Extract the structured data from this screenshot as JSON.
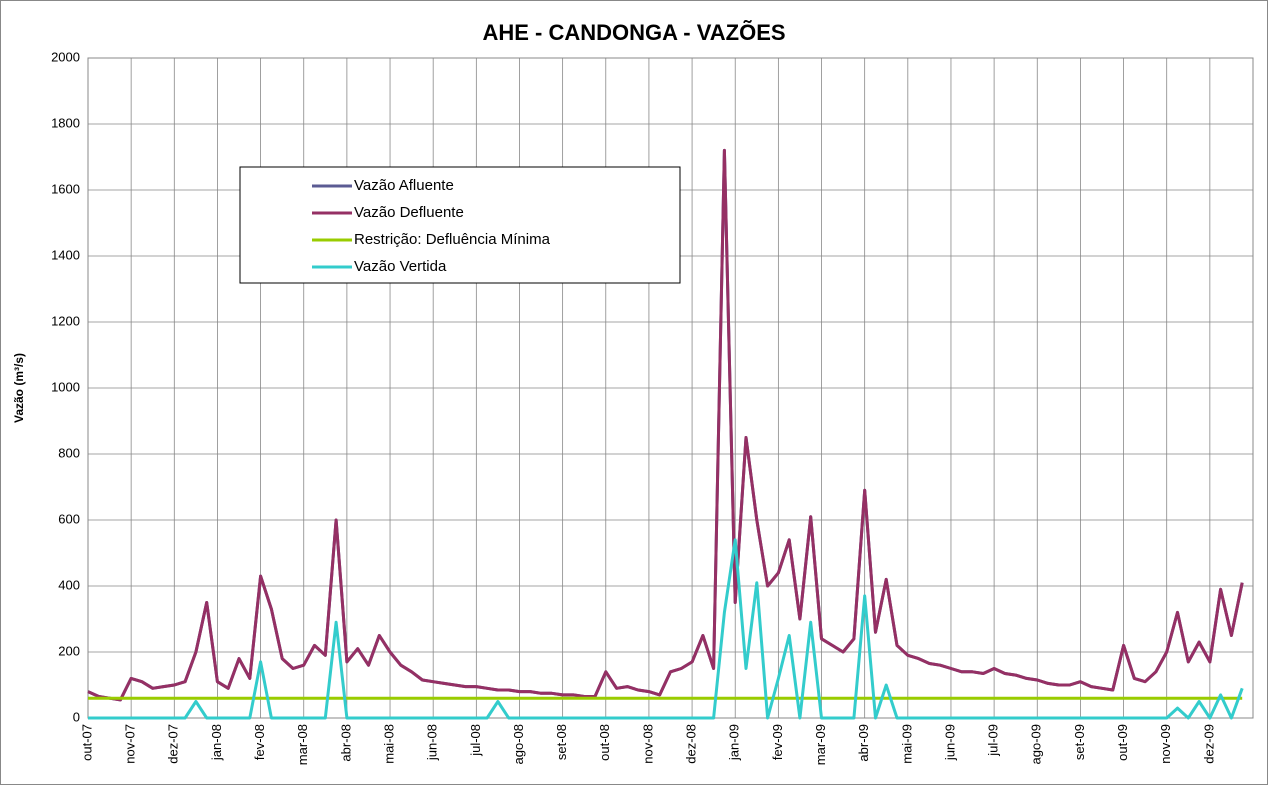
{
  "chart_data": {
    "type": "line",
    "title": "AHE - CANDONGA - VAZÕES",
    "y_label": "Vazão (m³/s)",
    "categories": [
      "out-07",
      null,
      null,
      null,
      "nov-07",
      null,
      null,
      null,
      "dez-07",
      null,
      null,
      null,
      "jan-08",
      null,
      null,
      null,
      "fev-08",
      null,
      null,
      null,
      "mar-08",
      null,
      null,
      null,
      "abr-08",
      null,
      null,
      null,
      "mai-08",
      null,
      null,
      null,
      "jun-08",
      null,
      null,
      null,
      "jul-08",
      null,
      null,
      null,
      "ago-08",
      null,
      null,
      null,
      "set-08",
      null,
      null,
      null,
      "out-08",
      null,
      null,
      null,
      "nov-08",
      null,
      null,
      null,
      "dez-08",
      null,
      null,
      null,
      "jan-09",
      null,
      null,
      null,
      "fev-09",
      null,
      null,
      null,
      "mar-09",
      null,
      null,
      null,
      "abr-09",
      null,
      null,
      null,
      "mai-09",
      null,
      null,
      null,
      "jun-09",
      null,
      null,
      null,
      "jul-09",
      null,
      null,
      null,
      "ago-09",
      null,
      null,
      null,
      "set-09",
      null,
      null,
      null,
      "out-09",
      null,
      null,
      null,
      "nov-09",
      null,
      null,
      null,
      "dez-09",
      null,
      null,
      null
    ],
    "series": [
      {
        "name": "Vazão Afluente",
        "color": "#5b5b93",
        "values": [
          80,
          65,
          60,
          55,
          120,
          110,
          90,
          95,
          100,
          110,
          200,
          350,
          110,
          90,
          180,
          120,
          430,
          330,
          180,
          150,
          160,
          220,
          190,
          600,
          170,
          210,
          160,
          250,
          200,
          160,
          140,
          115,
          110,
          105,
          100,
          95,
          95,
          90,
          85,
          85,
          80,
          80,
          75,
          75,
          70,
          70,
          65,
          65,
          140,
          90,
          95,
          85,
          80,
          70,
          140,
          150,
          170,
          250,
          150,
          1720,
          350,
          850,
          600,
          400,
          440,
          540,
          300,
          610,
          240,
          220,
          200,
          240,
          690,
          260,
          420,
          220,
          190,
          180,
          165,
          160,
          150,
          140,
          140,
          135,
          150,
          135,
          130,
          120,
          115,
          105,
          100,
          100,
          110,
          95,
          90,
          85,
          220,
          120,
          110,
          140,
          200,
          320,
          170,
          230,
          170,
          390,
          250,
          410
        ]
      },
      {
        "name": "Vazão Defluente",
        "color": "#953064",
        "values": [
          80,
          65,
          60,
          55,
          120,
          110,
          90,
          95,
          100,
          110,
          200,
          350,
          110,
          90,
          180,
          120,
          430,
          330,
          180,
          150,
          160,
          220,
          190,
          600,
          170,
          210,
          160,
          250,
          200,
          160,
          140,
          115,
          110,
          105,
          100,
          95,
          95,
          90,
          85,
          85,
          80,
          80,
          75,
          75,
          70,
          70,
          65,
          65,
          140,
          90,
          95,
          85,
          80,
          70,
          140,
          150,
          170,
          250,
          150,
          1720,
          350,
          850,
          600,
          400,
          440,
          540,
          300,
          610,
          240,
          220,
          200,
          240,
          690,
          260,
          420,
          220,
          190,
          180,
          165,
          160,
          150,
          140,
          140,
          135,
          150,
          135,
          130,
          120,
          115,
          105,
          100,
          100,
          110,
          95,
          90,
          85,
          220,
          120,
          110,
          140,
          200,
          320,
          170,
          230,
          170,
          390,
          250,
          410
        ]
      },
      {
        "name": "Restrição: Defluência Mínima",
        "color": "#99cc00",
        "values": [
          60,
          60,
          60,
          60,
          60,
          60,
          60,
          60,
          60,
          60,
          60,
          60,
          60,
          60,
          60,
          60,
          60,
          60,
          60,
          60,
          60,
          60,
          60,
          60,
          60,
          60,
          60,
          60,
          60,
          60,
          60,
          60,
          60,
          60,
          60,
          60,
          60,
          60,
          60,
          60,
          60,
          60,
          60,
          60,
          60,
          60,
          60,
          60,
          60,
          60,
          60,
          60,
          60,
          60,
          60,
          60,
          60,
          60,
          60,
          60,
          60,
          60,
          60,
          60,
          60,
          60,
          60,
          60,
          60,
          60,
          60,
          60,
          60,
          60,
          60,
          60,
          60,
          60,
          60,
          60,
          60,
          60,
          60,
          60,
          60,
          60,
          60,
          60,
          60,
          60,
          60,
          60,
          60,
          60,
          60,
          60,
          60,
          60,
          60,
          60,
          60,
          60,
          60,
          60,
          60,
          60,
          60,
          60
        ]
      },
      {
        "name": "Vazão Vertida",
        "color": "#33cccc",
        "values": [
          0,
          0,
          0,
          0,
          0,
          0,
          0,
          0,
          0,
          0,
          50,
          0,
          0,
          0,
          0,
          0,
          170,
          0,
          0,
          0,
          0,
          0,
          0,
          290,
          0,
          0,
          0,
          0,
          0,
          0,
          0,
          0,
          0,
          0,
          0,
          0,
          0,
          0,
          50,
          0,
          0,
          0,
          0,
          0,
          0,
          0,
          0,
          0,
          0,
          0,
          0,
          0,
          0,
          0,
          0,
          0,
          0,
          0,
          0,
          320,
          540,
          150,
          410,
          0,
          120,
          250,
          0,
          290,
          0,
          0,
          0,
          0,
          370,
          0,
          100,
          0,
          0,
          0,
          0,
          0,
          0,
          0,
          0,
          0,
          0,
          0,
          0,
          0,
          0,
          0,
          0,
          0,
          0,
          0,
          0,
          0,
          0,
          0,
          0,
          0,
          0,
          30,
          0,
          50,
          0,
          70,
          0,
          90
        ]
      }
    ],
    "ylim": [
      0,
      2000
    ],
    "yticks": [
      0,
      200,
      400,
      600,
      800,
      1000,
      1200,
      1400,
      1600,
      1800,
      2000
    ],
    "grid": true
  }
}
